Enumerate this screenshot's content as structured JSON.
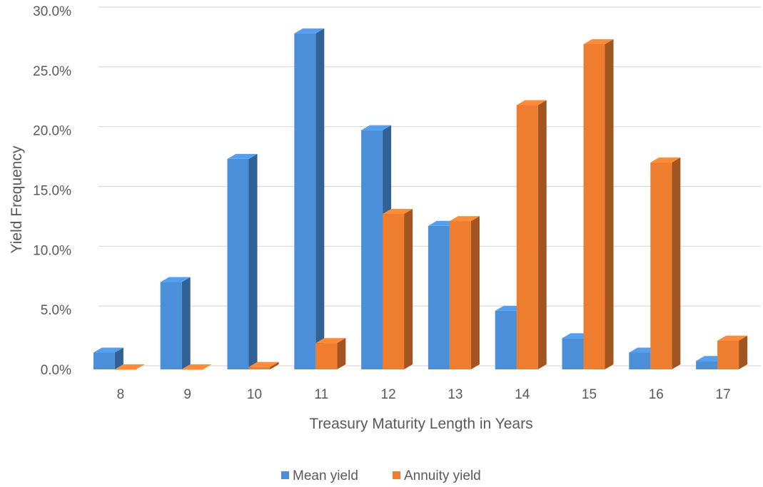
{
  "chart_data": {
    "type": "bar",
    "style": "3d-clustered-column",
    "categories": [
      "8",
      "9",
      "10",
      "11",
      "12",
      "13",
      "14",
      "15",
      "16",
      "17"
    ],
    "series": [
      {
        "name": "Mean yield",
        "color": "#4A8FD8",
        "values": [
          1.4,
          7.3,
          17.6,
          28.1,
          20.0,
          12.0,
          4.9,
          2.6,
          1.4,
          0.7
        ]
      },
      {
        "name": "Annuity yield",
        "color": "#EE7D2F",
        "values": [
          0.0,
          0.0,
          0.2,
          2.2,
          13.0,
          12.4,
          22.1,
          27.2,
          17.3,
          2.4
        ]
      }
    ],
    "title": "",
    "xlabel": "Treasury Maturity Length in Years",
    "ylabel": "Yield Frequency",
    "ylim": [
      0,
      30
    ],
    "yticks": [
      0,
      5,
      10,
      15,
      20,
      25,
      30
    ],
    "ytick_labels": [
      "0.0%",
      "5.0%",
      "10.0%",
      "15.0%",
      "20.0%",
      "25.0%",
      "30.0%"
    ],
    "grid": true,
    "legend": "bottom"
  }
}
